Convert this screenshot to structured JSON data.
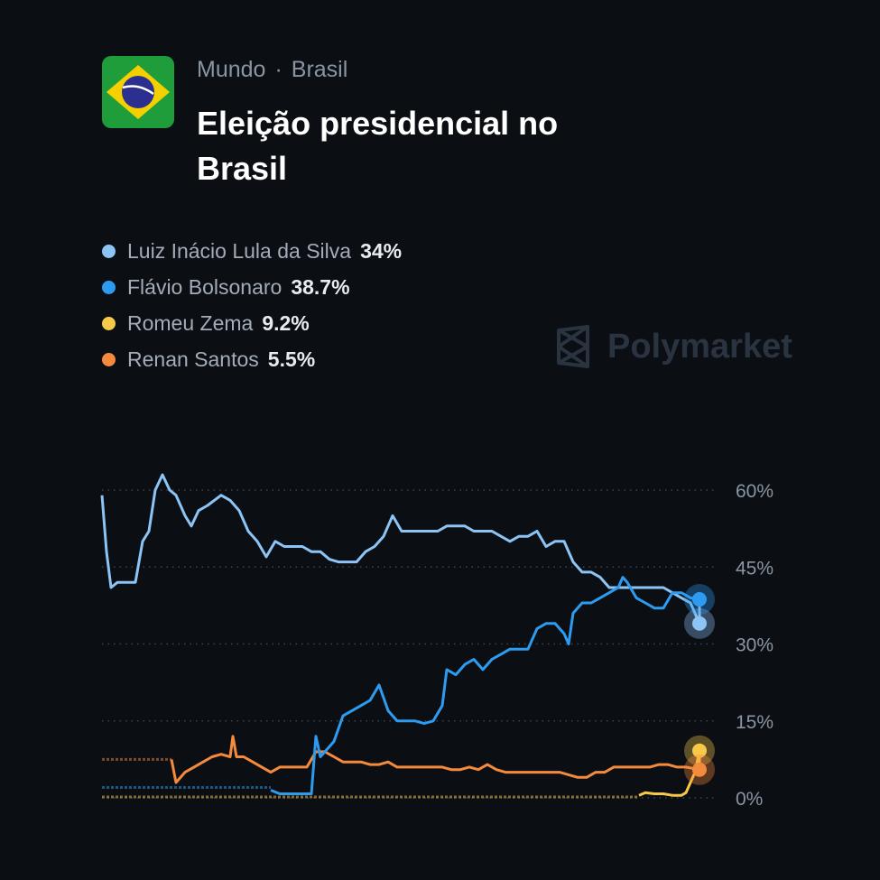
{
  "header": {
    "breadcrumb": [
      "Mundo",
      "Brasil"
    ],
    "separator": "·",
    "title": "Eleição presidencial no Brasil",
    "icon": "brazil-flag-icon"
  },
  "brand": {
    "name": "Polymarket",
    "icon": "polymarket-logo-icon"
  },
  "legend": [
    {
      "name": "Luiz Inácio Lula da Silva",
      "value": "34%",
      "color": "#8cc4f5"
    },
    {
      "name": "Flávio Bolsonaro",
      "value": "38.7%",
      "color": "#2d9cf0"
    },
    {
      "name": "Romeu Zema",
      "value": "9.2%",
      "color": "#f7c948"
    },
    {
      "name": "Renan Santos",
      "value": "5.5%",
      "color": "#f58a3c"
    }
  ],
  "chart_data": {
    "type": "line",
    "title": "",
    "xlabel": "",
    "ylabel": "",
    "xlim": [
      0,
      665
    ],
    "ylim": [
      0,
      60
    ],
    "yticks": [
      "60%",
      "45%",
      "30%",
      "15%",
      "0%"
    ],
    "ytick_values": [
      60,
      45,
      30,
      15,
      0
    ],
    "grid": true,
    "y_axis_position": "right",
    "series": [
      {
        "name": "Luiz Inácio Lula da Silva",
        "color": "#8cc4f5",
        "points": [
          [
            0,
            59
          ],
          [
            5,
            48
          ],
          [
            10,
            41
          ],
          [
            17,
            42
          ],
          [
            27,
            42
          ],
          [
            37,
            42
          ],
          [
            45,
            50
          ],
          [
            52,
            52
          ],
          [
            59,
            60
          ],
          [
            67,
            63
          ],
          [
            75,
            60
          ],
          [
            82,
            59
          ],
          [
            92,
            55
          ],
          [
            99,
            53
          ],
          [
            107,
            56
          ],
          [
            117,
            57
          ],
          [
            132,
            59
          ],
          [
            142,
            58
          ],
          [
            152,
            56
          ],
          [
            162,
            52
          ],
          [
            172,
            50
          ],
          [
            182,
            47
          ],
          [
            192,
            50
          ],
          [
            202,
            49
          ],
          [
            212,
            49
          ],
          [
            222,
            49
          ],
          [
            232,
            48
          ],
          [
            242,
            48
          ],
          [
            252,
            46.5
          ],
          [
            262,
            46
          ],
          [
            272,
            46
          ],
          [
            282,
            46
          ],
          [
            292,
            48
          ],
          [
            302,
            49
          ],
          [
            312,
            51
          ],
          [
            322,
            55
          ],
          [
            332,
            52
          ],
          [
            342,
            52
          ],
          [
            352,
            52
          ],
          [
            362,
            52
          ],
          [
            372,
            52
          ],
          [
            382,
            53
          ],
          [
            392,
            53
          ],
          [
            402,
            53
          ],
          [
            412,
            52
          ],
          [
            422,
            52
          ],
          [
            432,
            52
          ],
          [
            442,
            51
          ],
          [
            452,
            50
          ],
          [
            462,
            51
          ],
          [
            472,
            51
          ],
          [
            482,
            52
          ],
          [
            492,
            49
          ],
          [
            502,
            50
          ],
          [
            512,
            50
          ],
          [
            522,
            46
          ],
          [
            532,
            44
          ],
          [
            542,
            44
          ],
          [
            552,
            43
          ],
          [
            562,
            41
          ],
          [
            572,
            41
          ],
          [
            582,
            41
          ],
          [
            592,
            41
          ],
          [
            602,
            41
          ],
          [
            612,
            41
          ],
          [
            622,
            41
          ],
          [
            632,
            40
          ],
          [
            642,
            39
          ],
          [
            652,
            38
          ],
          [
            662,
            34
          ]
        ]
      },
      {
        "name": "Flávio Bolsonaro",
        "color": "#2d9cf0",
        "points": [
          [
            187,
            1.5
          ],
          [
            197,
            0.8
          ],
          [
            207,
            0.8
          ],
          [
            217,
            0.8
          ],
          [
            232,
            0.8
          ],
          [
            237,
            12
          ],
          [
            242,
            8
          ],
          [
            247,
            9
          ],
          [
            257,
            11
          ],
          [
            267,
            16
          ],
          [
            277,
            17
          ],
          [
            287,
            18
          ],
          [
            297,
            19
          ],
          [
            307,
            22
          ],
          [
            317,
            17
          ],
          [
            327,
            15
          ],
          [
            337,
            15
          ],
          [
            347,
            15
          ],
          [
            357,
            14.5
          ],
          [
            367,
            15
          ],
          [
            377,
            18
          ],
          [
            382,
            25
          ],
          [
            392,
            24
          ],
          [
            402,
            26
          ],
          [
            412,
            27
          ],
          [
            422,
            25
          ],
          [
            432,
            27
          ],
          [
            442,
            28
          ],
          [
            452,
            29
          ],
          [
            462,
            29
          ],
          [
            472,
            29
          ],
          [
            482,
            33
          ],
          [
            492,
            34
          ],
          [
            502,
            34
          ],
          [
            512,
            32
          ],
          [
            517,
            30
          ],
          [
            522,
            36
          ],
          [
            532,
            38
          ],
          [
            542,
            38
          ],
          [
            552,
            39
          ],
          [
            562,
            40
          ],
          [
            572,
            41
          ],
          [
            577,
            43
          ],
          [
            582,
            42
          ],
          [
            592,
            39
          ],
          [
            602,
            38
          ],
          [
            612,
            37
          ],
          [
            622,
            37
          ],
          [
            632,
            40
          ],
          [
            642,
            40
          ],
          [
            652,
            39
          ],
          [
            662,
            38.7
          ]
        ]
      },
      {
        "name": "Romeu Zema",
        "color": "#f7c948",
        "points": [
          [
            595,
            0.5
          ],
          [
            602,
            1
          ],
          [
            612,
            0.8
          ],
          [
            622,
            0.8
          ],
          [
            632,
            0.5
          ],
          [
            642,
            0.5
          ],
          [
            647,
            1
          ],
          [
            652,
            3
          ],
          [
            657,
            5
          ],
          [
            662,
            9.2
          ]
        ]
      },
      {
        "name": "Renan Santos",
        "color": "#f58a3c",
        "points": [
          [
            77,
            7.5
          ],
          [
            82,
            3
          ],
          [
            92,
            5
          ],
          [
            102,
            6
          ],
          [
            112,
            7
          ],
          [
            122,
            8
          ],
          [
            132,
            8.5
          ],
          [
            142,
            8
          ],
          [
            145,
            12
          ],
          [
            149,
            8
          ],
          [
            157,
            8
          ],
          [
            167,
            7
          ],
          [
            177,
            6
          ],
          [
            187,
            5
          ],
          [
            197,
            6
          ],
          [
            207,
            6
          ],
          [
            217,
            6
          ],
          [
            227,
            6
          ],
          [
            237,
            9
          ],
          [
            247,
            9
          ],
          [
            257,
            8
          ],
          [
            267,
            7
          ],
          [
            277,
            7
          ],
          [
            287,
            7
          ],
          [
            297,
            6.5
          ],
          [
            307,
            6.5
          ],
          [
            317,
            7
          ],
          [
            327,
            6
          ],
          [
            337,
            6
          ],
          [
            347,
            6
          ],
          [
            357,
            6
          ],
          [
            367,
            6
          ],
          [
            377,
            6
          ],
          [
            387,
            5.5
          ],
          [
            397,
            5.5
          ],
          [
            407,
            6
          ],
          [
            417,
            5.5
          ],
          [
            427,
            6.5
          ],
          [
            437,
            5.5
          ],
          [
            447,
            5
          ],
          [
            457,
            5
          ],
          [
            467,
            5
          ],
          [
            477,
            5
          ],
          [
            487,
            5
          ],
          [
            497,
            5
          ],
          [
            507,
            5
          ],
          [
            517,
            4.5
          ],
          [
            527,
            4
          ],
          [
            537,
            4
          ],
          [
            547,
            5
          ],
          [
            557,
            5
          ],
          [
            567,
            6
          ],
          [
            577,
            6
          ],
          [
            587,
            6
          ],
          [
            597,
            6
          ],
          [
            607,
            6
          ],
          [
            617,
            6.5
          ],
          [
            627,
            6.5
          ],
          [
            637,
            6
          ],
          [
            647,
            6
          ],
          [
            662,
            5.5
          ]
        ]
      }
    ]
  }
}
